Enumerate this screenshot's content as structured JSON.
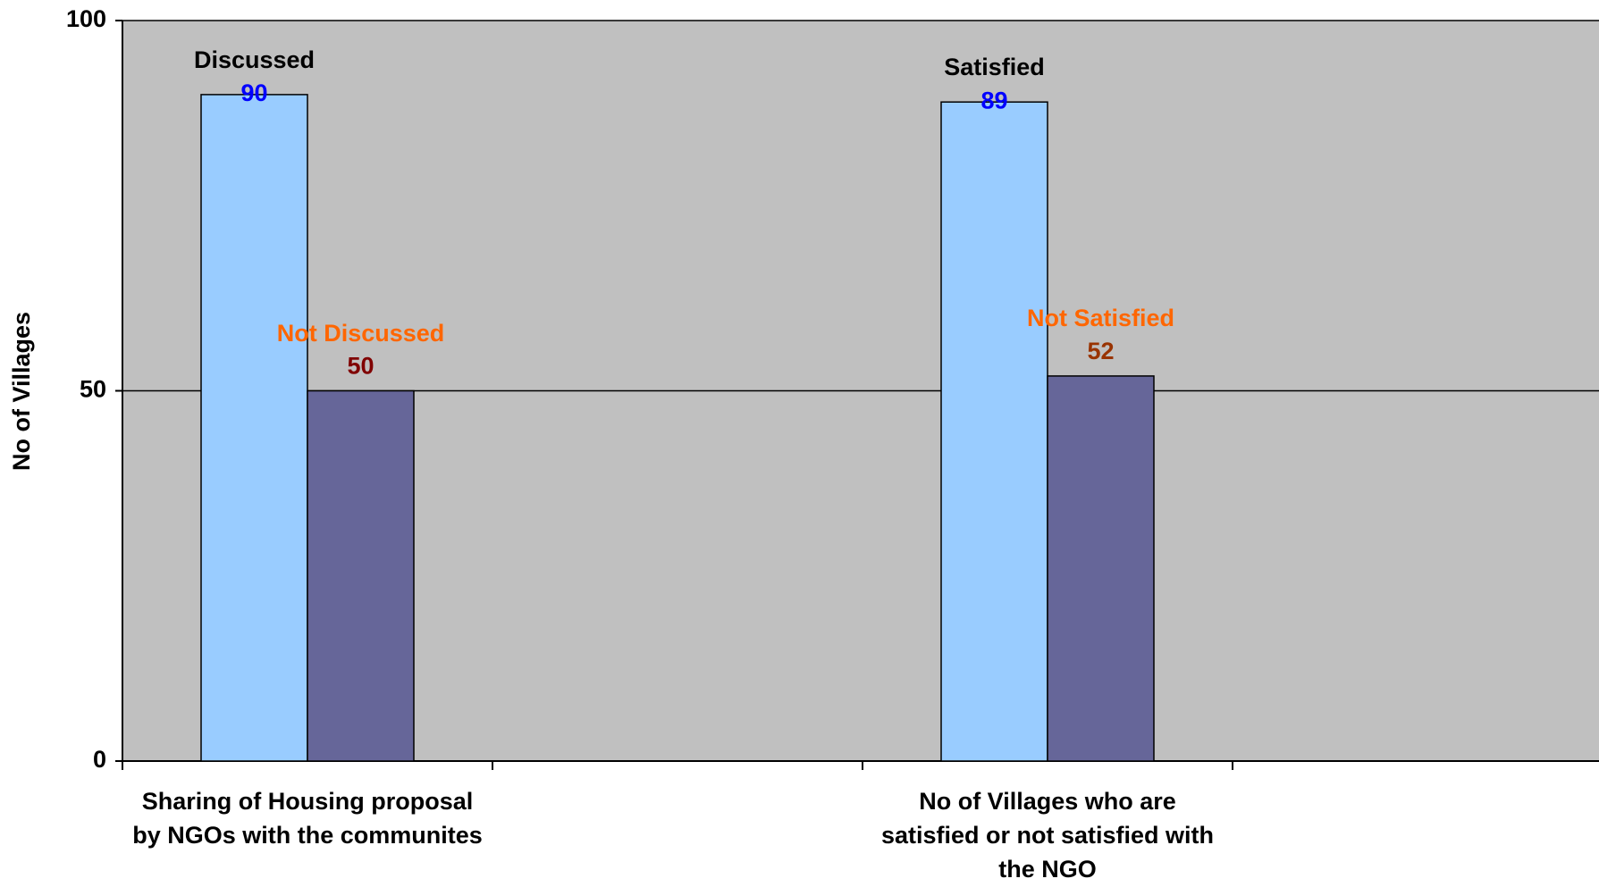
{
  "chart_data": {
    "type": "bar",
    "y_label": "No of Villages",
    "categories": [
      "Sharing of Housing proposal by NGOs with the communites",
      null,
      "No of Villages who are satisfied or not satisfied with the NGO",
      null
    ],
    "series": [
      {
        "color": "#99ccff",
        "values": [
          90,
          null,
          89,
          null
        ],
        "bar_labels": [
          "Discussed",
          null,
          "Satisfied",
          null
        ],
        "bar_label_color": "#000000",
        "value_label_colors": [
          "#0000ff",
          null,
          "#0000ff",
          null
        ]
      },
      {
        "color": "#666699",
        "values": [
          50,
          null,
          52,
          null
        ],
        "bar_labels": [
          "Not Discussed",
          null,
          "Not Satisfied",
          null
        ],
        "bar_label_color": "#ff6600",
        "value_label_colors": [
          "#800000",
          null,
          "#993300",
          null
        ]
      }
    ],
    "ylim": [
      0,
      100
    ],
    "yticks": [
      0,
      50,
      100
    ],
    "grid": true,
    "plot_background": "#c0c0c0"
  }
}
